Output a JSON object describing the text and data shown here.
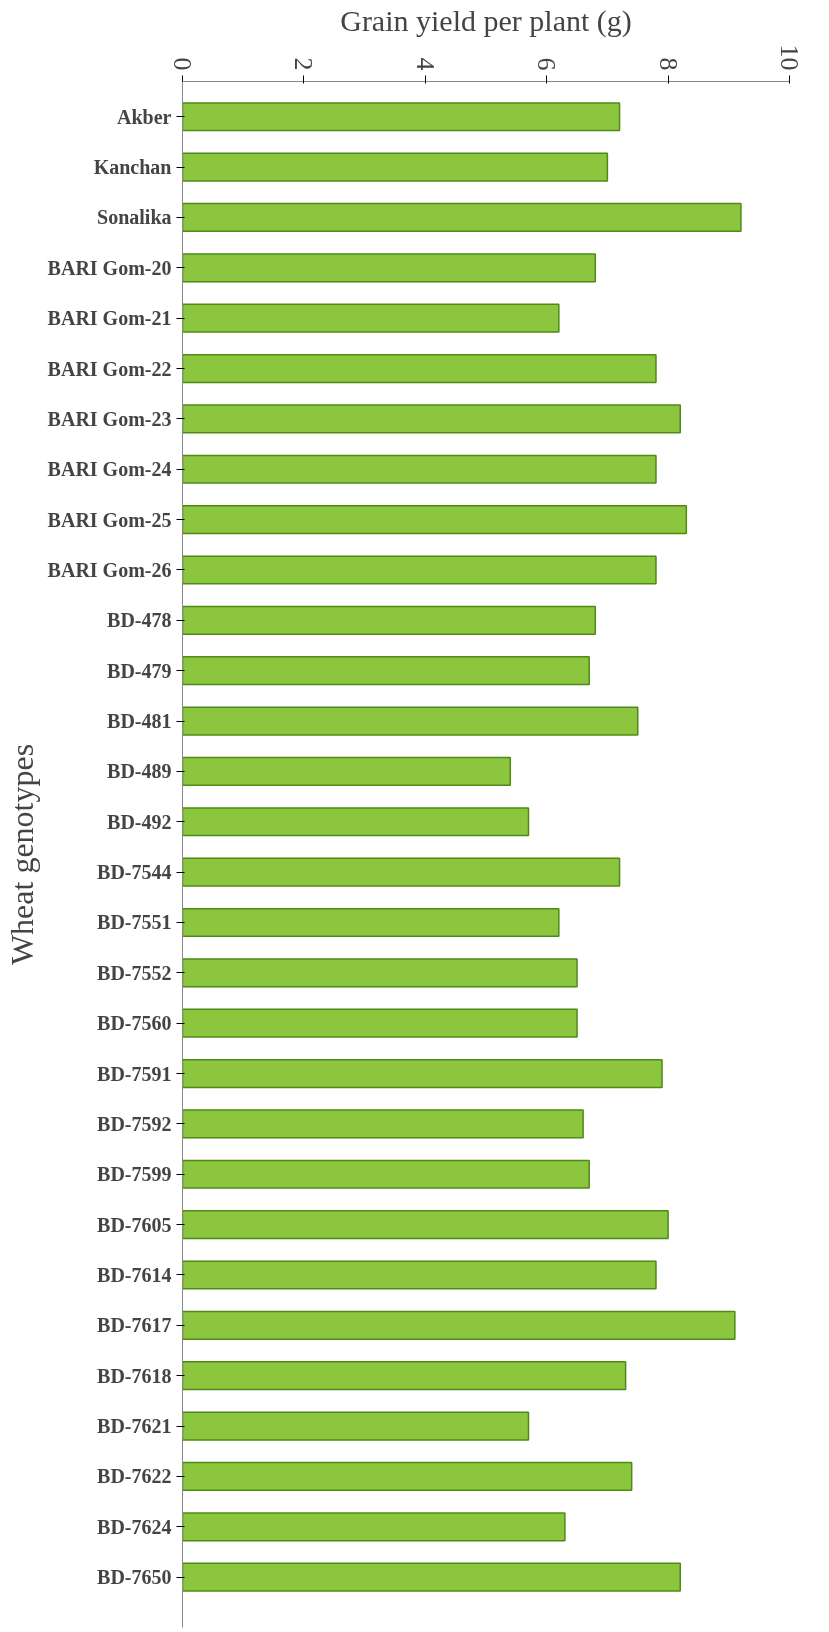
{
  "chart_data": {
    "type": "bar",
    "orientation": "horizontal",
    "xlabel": "Grain yield per plant (g)",
    "ylabel": "Wheat genotypes",
    "categories": [
      "Akber",
      "Kanchan",
      "Sonalika",
      "BARI Gom-20",
      "BARI Gom-21",
      "BARI Gom-22",
      "BARI Gom-23",
      "BARI Gom-24",
      "BARI Gom-25",
      "BARI Gom-26",
      "BD-478",
      "BD-479",
      "BD-481",
      "BD-489",
      "BD-492",
      "BD-7544",
      "BD-7551",
      "BD-7552",
      "BD-7560",
      "BD-7591",
      "BD-7592",
      "BD-7599",
      "BD-7605",
      "BD-7614",
      "BD-7617",
      "BD-7618",
      "BD-7621",
      "BD-7622",
      "BD-7624",
      "BD-7650"
    ],
    "values": [
      7.2,
      7.0,
      9.2,
      6.8,
      6.2,
      7.8,
      8.2,
      7.8,
      8.3,
      7.8,
      6.8,
      6.7,
      7.5,
      5.4,
      5.7,
      7.2,
      6.2,
      6.5,
      6.5,
      7.9,
      6.6,
      6.7,
      8.0,
      7.8,
      9.1,
      7.3,
      5.7,
      7.4,
      6.3,
      8.2
    ],
    "color": "#8cc63e",
    "xlim": [
      0,
      10
    ],
    "xticks": [
      0,
      2,
      4,
      6,
      8,
      10
    ],
    "grid": false
  }
}
